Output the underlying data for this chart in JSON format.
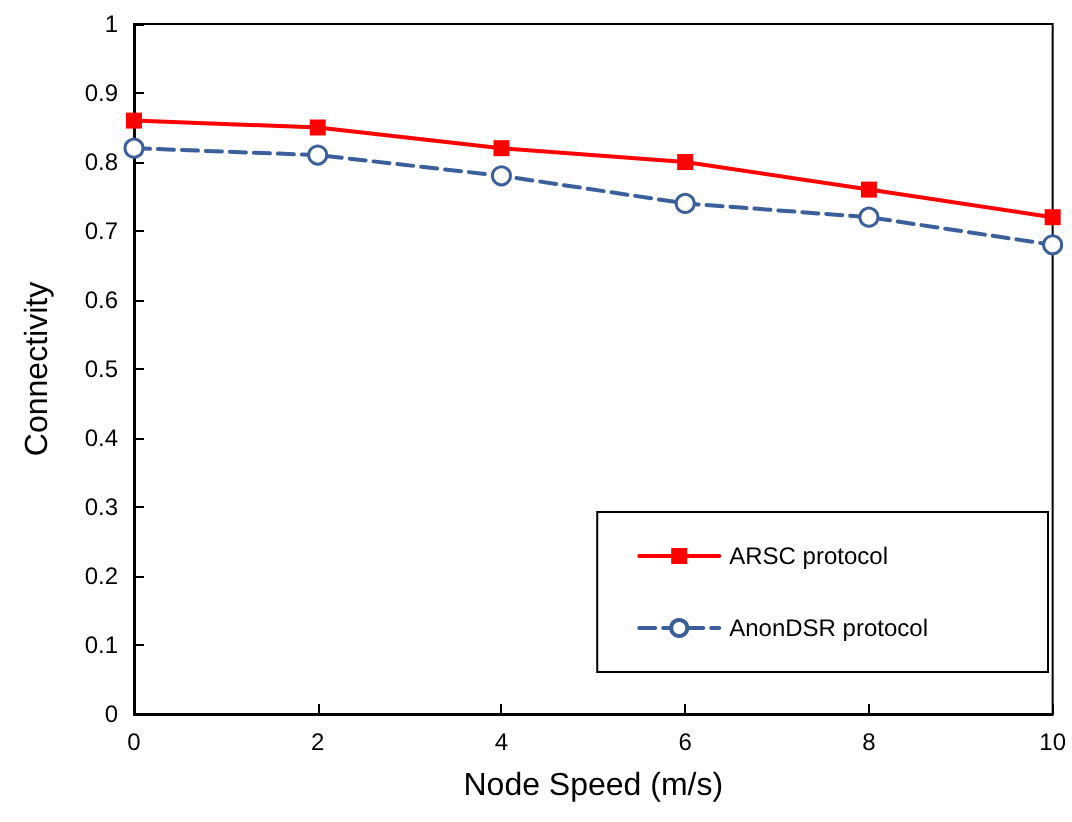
{
  "chart_data": {
    "type": "line",
    "xlabel": "Node Speed (m/s)",
    "ylabel": "Connectivity",
    "x": [
      0,
      2,
      4,
      6,
      8,
      10
    ],
    "series": [
      {
        "name": "ARSC protocol",
        "color": "#ff0000",
        "marker": "square",
        "line_style": "solid",
        "values": [
          0.86,
          0.85,
          0.82,
          0.8,
          0.76,
          0.72
        ]
      },
      {
        "name": "AnonDSR protocol",
        "color": "#3a5f9a",
        "marker": "circle",
        "line_style": "dashed",
        "values": [
          0.82,
          0.81,
          0.78,
          0.74,
          0.72,
          0.68
        ]
      }
    ],
    "xlim": [
      0,
      10
    ],
    "xticks": [
      0,
      2,
      4,
      6,
      8,
      10
    ],
    "ylim": [
      0,
      1
    ],
    "yticks": [
      0,
      0.1,
      0.2,
      0.3,
      0.4,
      0.5,
      0.6,
      0.7,
      0.8,
      0.9,
      1
    ],
    "grid": false,
    "legend": "bottom right"
  }
}
